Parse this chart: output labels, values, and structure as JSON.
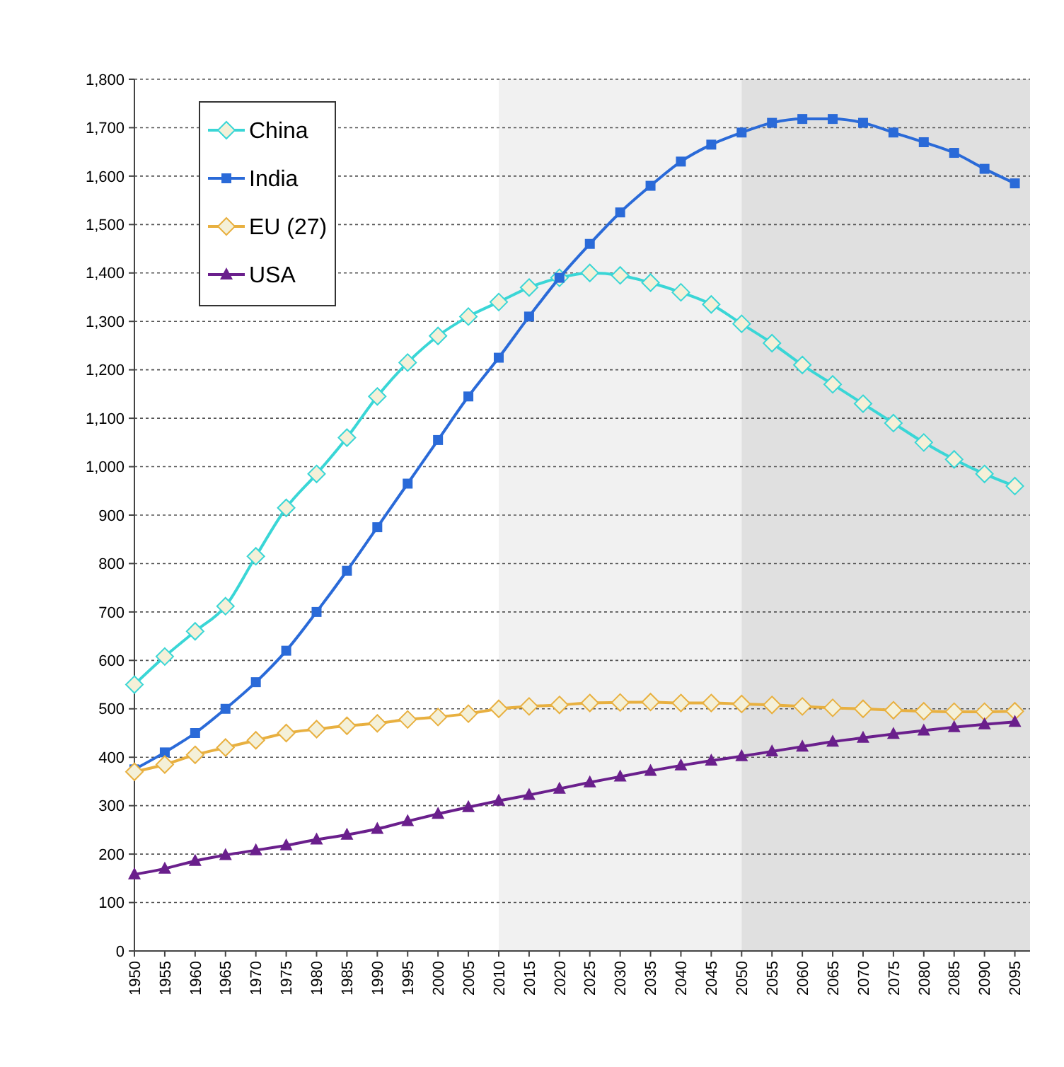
{
  "chart_data": {
    "type": "line",
    "x": [
      1950,
      1955,
      1960,
      1965,
      1970,
      1975,
      1980,
      1985,
      1990,
      1995,
      2000,
      2005,
      2010,
      2015,
      2020,
      2025,
      2030,
      2035,
      2040,
      2045,
      2050,
      2055,
      2060,
      2065,
      2070,
      2075,
      2080,
      2085,
      2090,
      2095
    ],
    "series": [
      {
        "name": "China",
        "color": "#3ad6d6",
        "marker": "diamond",
        "values": [
          550,
          608,
          660,
          712,
          815,
          915,
          985,
          1060,
          1145,
          1215,
          1270,
          1310,
          1340,
          1370,
          1390,
          1400,
          1395,
          1380,
          1360,
          1335,
          1295,
          1255,
          1210,
          1170,
          1130,
          1090,
          1050,
          1015,
          985,
          960
        ]
      },
      {
        "name": "India",
        "color": "#2a6ad8",
        "marker": "square",
        "values": [
          375,
          410,
          450,
          500,
          555,
          620,
          700,
          785,
          875,
          965,
          1055,
          1145,
          1225,
          1310,
          1390,
          1460,
          1525,
          1580,
          1630,
          1665,
          1690,
          1710,
          1718,
          1718,
          1710,
          1690,
          1670,
          1648,
          1615,
          1585
        ]
      },
      {
        "name": "EU (27)",
        "color": "#e8b040",
        "marker": "diamond",
        "values": [
          370,
          385,
          405,
          420,
          435,
          450,
          458,
          465,
          470,
          478,
          483,
          490,
          500,
          505,
          508,
          512,
          513,
          514,
          512,
          512,
          510,
          508,
          505,
          502,
          500,
          497,
          495,
          494,
          494,
          495
        ]
      },
      {
        "name": "USA",
        "color": "#6a1f8c",
        "marker": "triangle",
        "values": [
          158,
          170,
          186,
          198,
          208,
          218,
          230,
          240,
          252,
          268,
          283,
          297,
          310,
          322,
          335,
          348,
          360,
          372,
          383,
          393,
          402,
          412,
          422,
          432,
          440,
          448,
          455,
          462,
          468,
          473
        ]
      }
    ],
    "xlim": [
      1950,
      2097.5
    ],
    "xticks": [
      1950,
      1955,
      1960,
      1965,
      1970,
      1975,
      1980,
      1985,
      1990,
      1995,
      2000,
      2005,
      2010,
      2015,
      2020,
      2025,
      2030,
      2035,
      2040,
      2045,
      2050,
      2055,
      2060,
      2065,
      2070,
      2075,
      2080,
      2085,
      2090,
      2095
    ],
    "ylim": [
      0,
      1800
    ],
    "yticks": [
      0,
      100,
      200,
      300,
      400,
      500,
      600,
      700,
      800,
      900,
      {
        "value": 1000,
        "label": "1,000"
      },
      {
        "value": 1100,
        "label": "1,100"
      },
      {
        "value": 1200,
        "label": "1,200"
      },
      {
        "value": 1300,
        "label": "1,300"
      },
      {
        "value": 1400,
        "label": "1,400"
      },
      {
        "value": 1500,
        "label": "1,500"
      },
      {
        "value": 1600,
        "label": "1,600"
      },
      {
        "value": 1700,
        "label": "1,700"
      },
      {
        "value": 1800,
        "label": "1,800"
      }
    ],
    "bands": [
      {
        "axis": "x",
        "from": 2010,
        "to": 2050,
        "color": "#f1f1f1"
      },
      {
        "axis": "x",
        "from": 2050,
        "to": 2097.5,
        "color": "#e0e0e0"
      }
    ],
    "grid": "y",
    "legend": "top left",
    "line_style": "solid"
  }
}
